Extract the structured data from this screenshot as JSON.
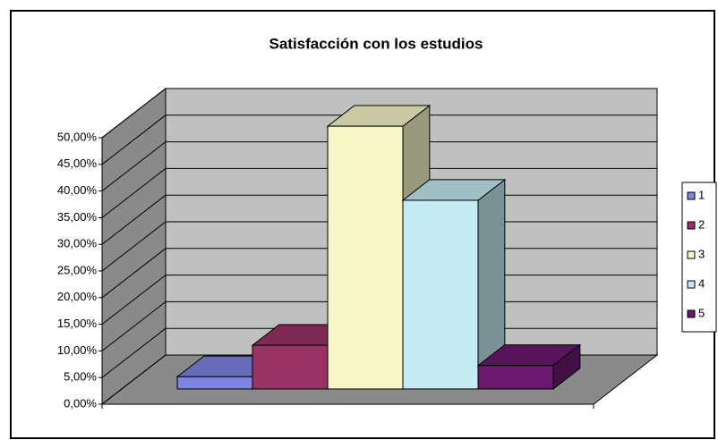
{
  "chart_data": {
    "type": "bar3d",
    "title": "Satisfacción con los estudios",
    "categories": [
      "1",
      "2",
      "3",
      "4",
      "5"
    ],
    "values": [
      2.3,
      8.2,
      49.3,
      35.4,
      4.4
    ],
    "colors": [
      "#7f84e0",
      "#993366",
      "#f5f5c8",
      "#c4eaf2",
      "#6a1a6e"
    ],
    "ylim": [
      0,
      50
    ],
    "yticks": [
      {
        "value": 0,
        "label": "0,00%"
      },
      {
        "value": 5,
        "label": "5,00%"
      },
      {
        "value": 10,
        "label": "10,00%"
      },
      {
        "value": 15,
        "label": "15,00%"
      },
      {
        "value": 20,
        "label": "20,00%"
      },
      {
        "value": 25,
        "label": "25,00%"
      },
      {
        "value": 30,
        "label": "30,00%"
      },
      {
        "value": 35,
        "label": "35,00%"
      },
      {
        "value": 40,
        "label": "40,00%"
      },
      {
        "value": 45,
        "label": "45,00%"
      },
      {
        "value": 50,
        "label": "50,00%"
      }
    ],
    "grid": true,
    "legend": "right"
  }
}
